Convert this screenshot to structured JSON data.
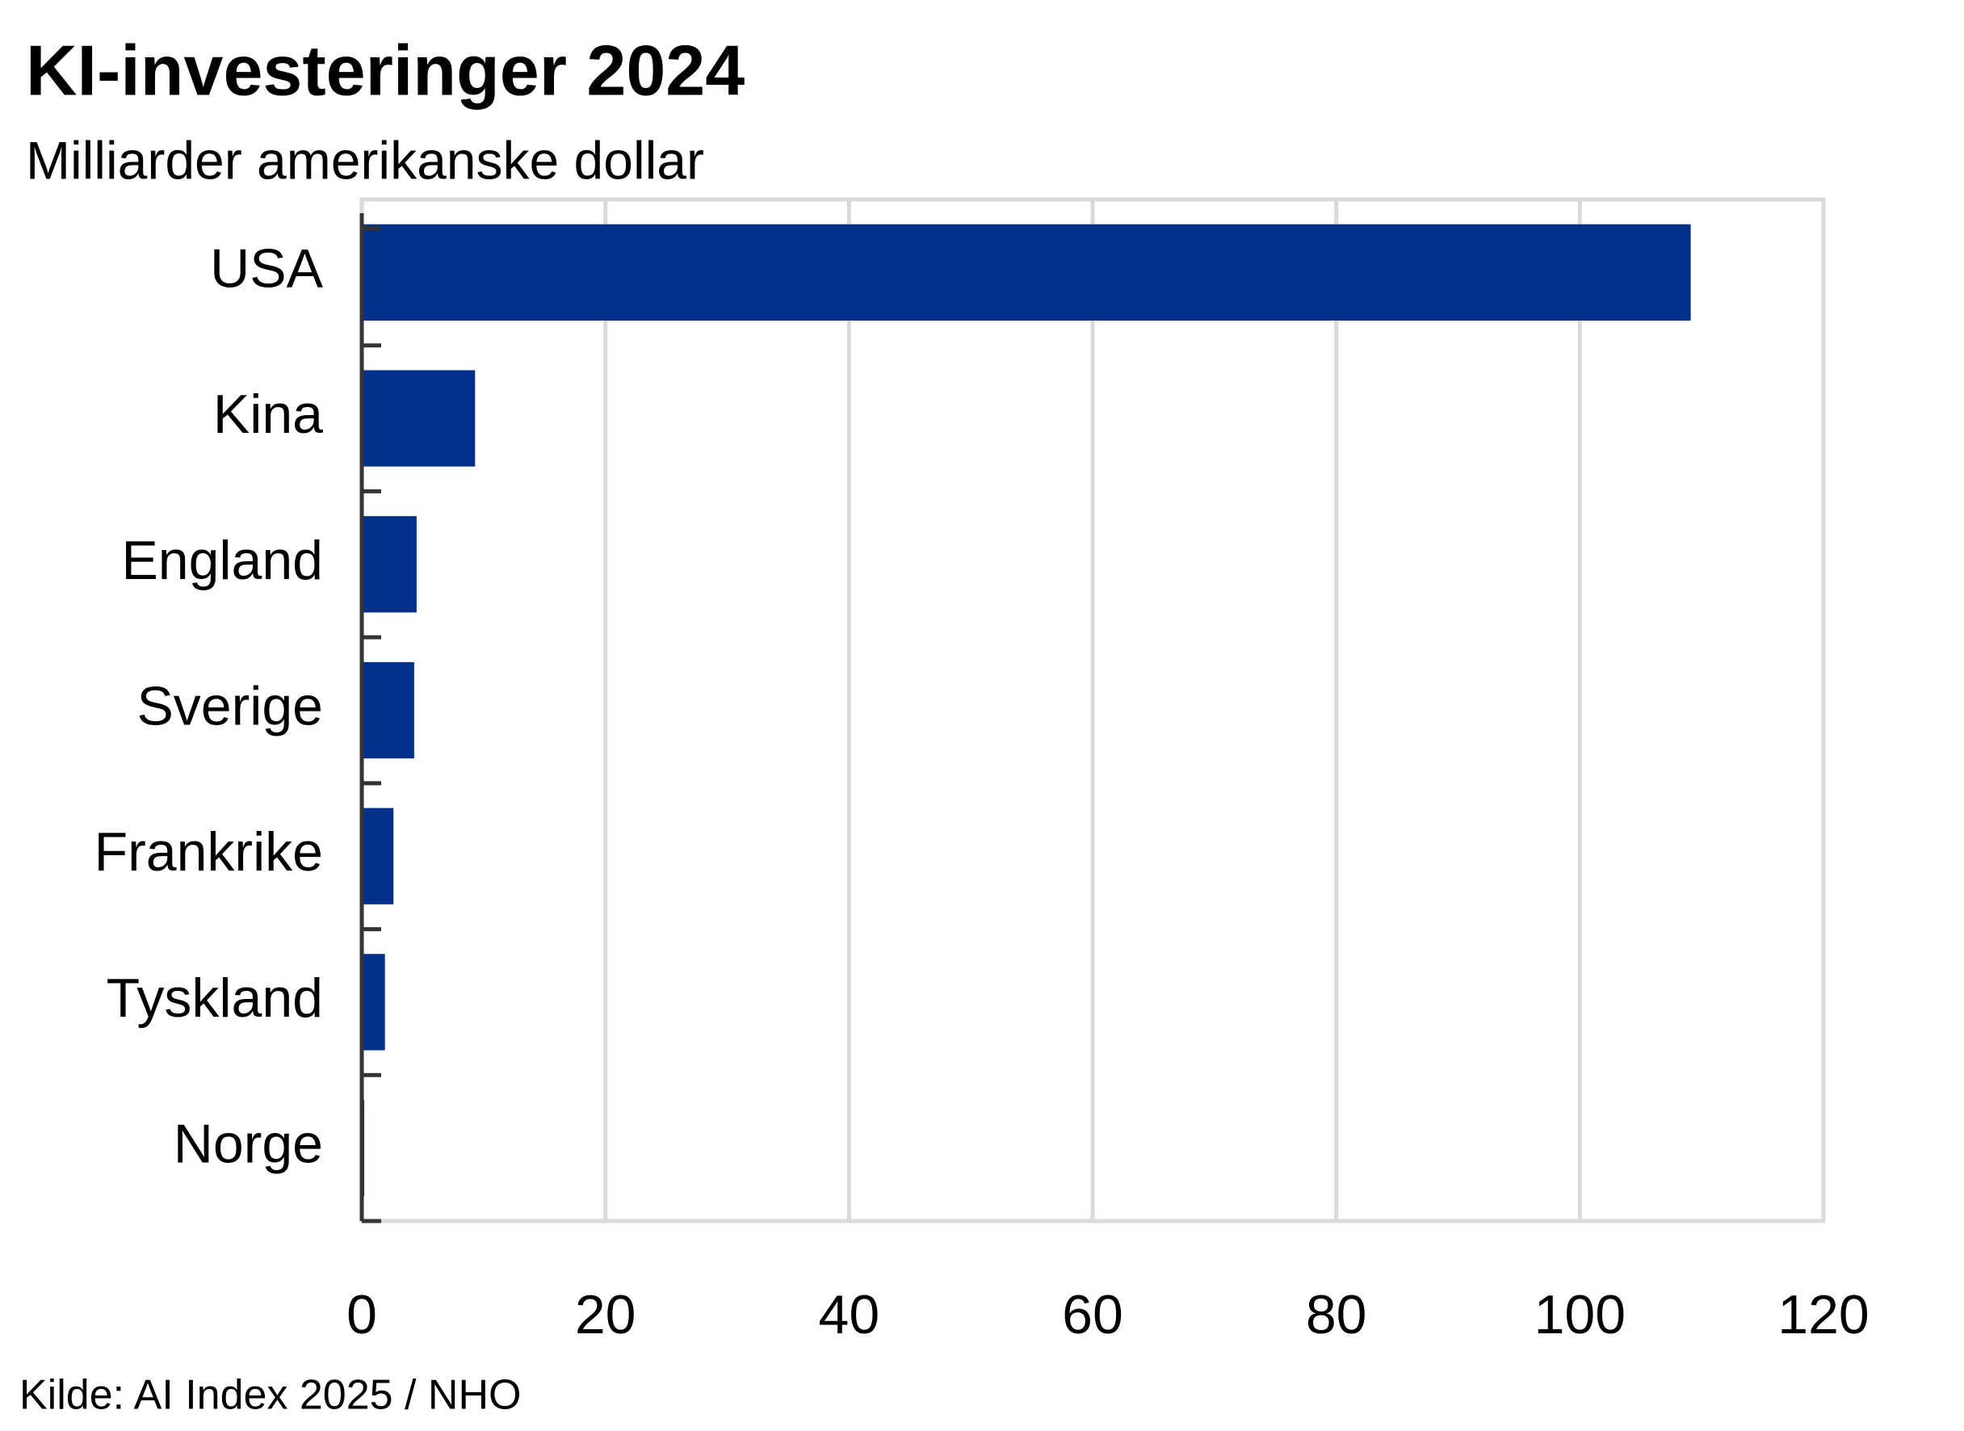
{
  "chart_data": {
    "type": "bar",
    "orientation": "horizontal",
    "title": "KI-investeringer 2024",
    "subtitle": "Milliarder amerikanske dollar",
    "source": "Kilde: AI Index 2025  / NHO",
    "categories": [
      "USA",
      "Kina",
      "England",
      "Sverige",
      "Frankrike",
      "Tyskland",
      "Norge"
    ],
    "values": [
      109.1,
      9.3,
      4.5,
      4.3,
      2.6,
      1.9,
      0.2
    ],
    "color": "#00308a",
    "xlim": [
      0,
      120
    ],
    "xticks": [
      0,
      20,
      40,
      60,
      80,
      100,
      120
    ],
    "grid": true
  }
}
